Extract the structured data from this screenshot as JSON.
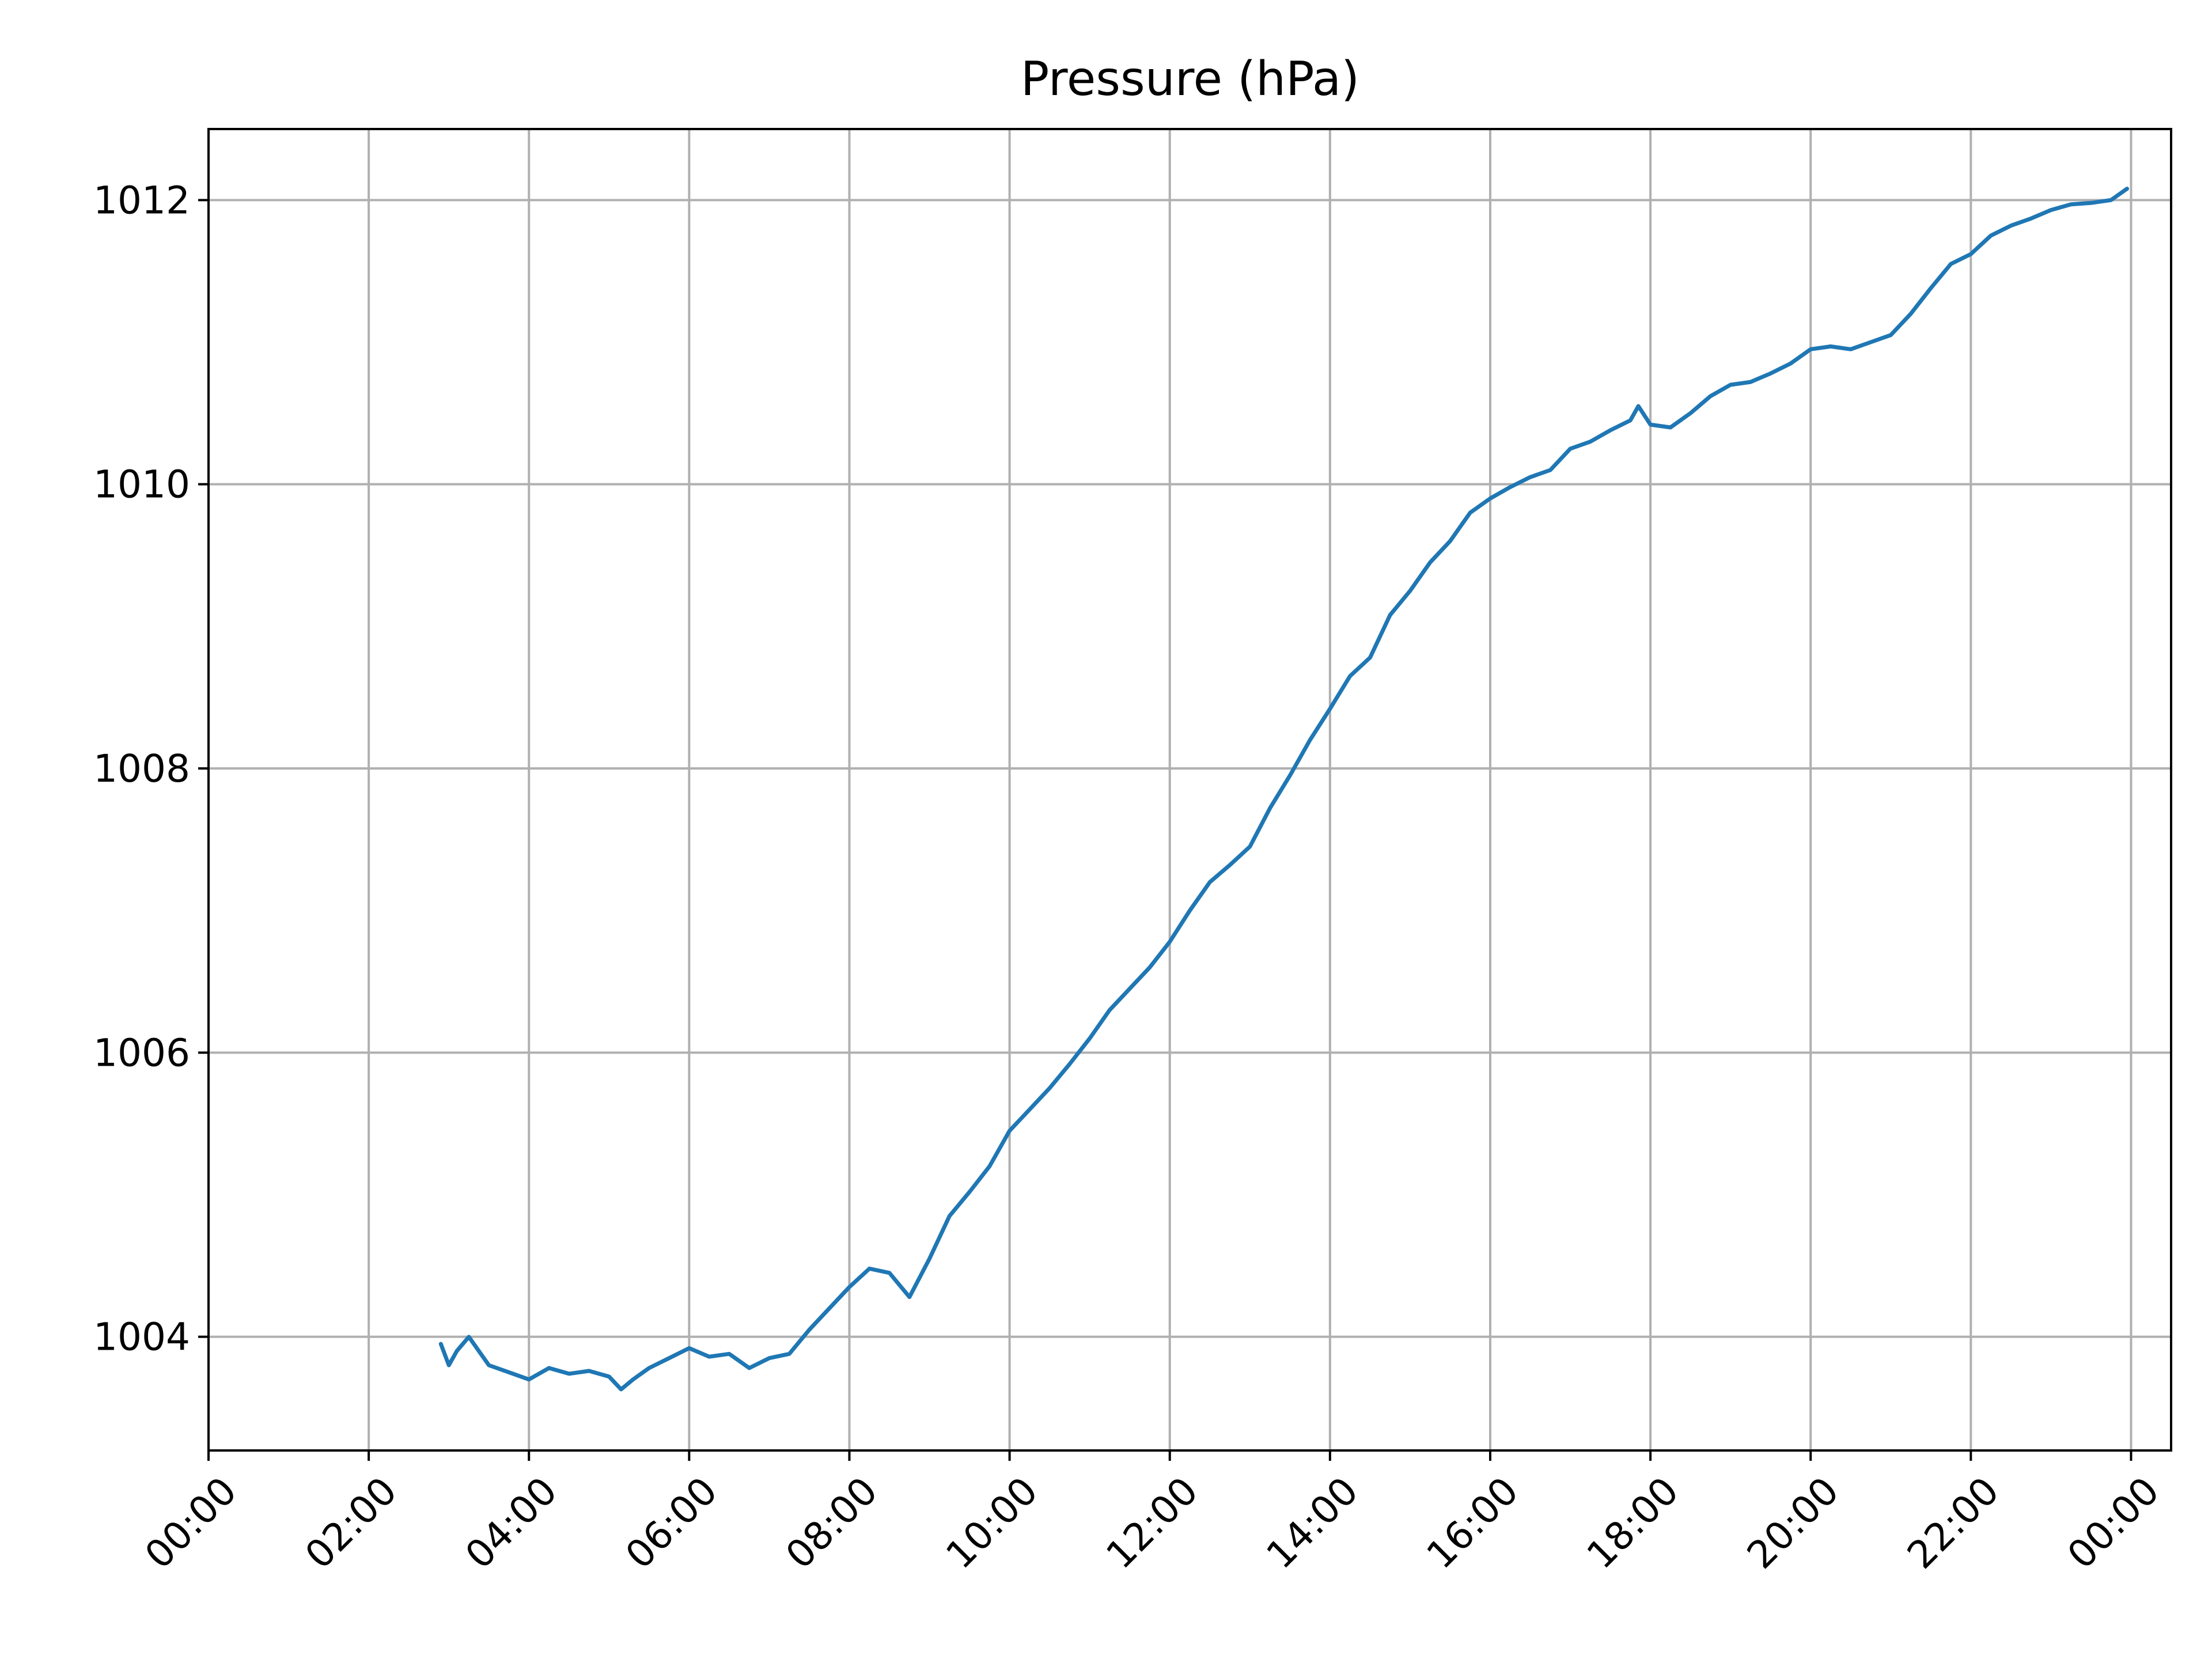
{
  "chart_data": {
    "type": "line",
    "title": "Pressure (hPa)",
    "xlabel": "",
    "ylabel": "",
    "x_unit": "hours",
    "xlim": [
      0,
      24.5
    ],
    "ylim": [
      1003.2,
      1012.5
    ],
    "xticks": [
      0,
      2,
      4,
      6,
      8,
      10,
      12,
      14,
      16,
      18,
      20,
      22,
      24
    ],
    "xtick_labels": [
      "00:00",
      "02:00",
      "04:00",
      "06:00",
      "08:00",
      "10:00",
      "12:00",
      "14:00",
      "16:00",
      "18:00",
      "20:00",
      "22:00",
      "00:00"
    ],
    "yticks": [
      1004,
      1006,
      1008,
      1010,
      1012
    ],
    "ytick_labels": [
      "1004",
      "1006",
      "1008",
      "1010",
      "1012"
    ],
    "grid": true,
    "line_color": "#1f77b4",
    "series": [
      {
        "name": "",
        "x": [
          2.9,
          3.0,
          3.1,
          3.25,
          3.5,
          3.75,
          4.0,
          4.25,
          4.5,
          4.75,
          5.0,
          5.15,
          5.3,
          5.5,
          5.75,
          6.0,
          6.25,
          6.5,
          6.75,
          7.0,
          7.25,
          7.5,
          7.75,
          8.0,
          8.25,
          8.5,
          8.75,
          9.0,
          9.25,
          9.5,
          9.75,
          10.0,
          10.25,
          10.5,
          10.75,
          11.0,
          11.25,
          11.5,
          11.75,
          12.0,
          12.25,
          12.5,
          12.75,
          13.0,
          13.25,
          13.5,
          13.75,
          14.0,
          14.25,
          14.5,
          14.75,
          15.0,
          15.25,
          15.5,
          15.75,
          16.0,
          16.25,
          16.5,
          16.75,
          17.0,
          17.25,
          17.5,
          17.75,
          17.85,
          18.0,
          18.25,
          18.5,
          18.75,
          19.0,
          19.25,
          19.5,
          19.75,
          20.0,
          20.25,
          20.5,
          20.75,
          21.0,
          21.25,
          21.5,
          21.75,
          22.0,
          22.25,
          22.5,
          22.75,
          23.0,
          23.25,
          23.5,
          23.75,
          23.95
        ],
        "y": [
          1003.95,
          1003.8,
          1003.9,
          1004.0,
          1003.8,
          1003.75,
          1003.7,
          1003.78,
          1003.74,
          1003.76,
          1003.72,
          1003.63,
          1003.7,
          1003.78,
          1003.85,
          1003.92,
          1003.86,
          1003.88,
          1003.78,
          1003.85,
          1003.88,
          1004.05,
          1004.2,
          1004.35,
          1004.48,
          1004.45,
          1004.28,
          1004.55,
          1004.85,
          1005.02,
          1005.2,
          1005.45,
          1005.6,
          1005.75,
          1005.92,
          1006.1,
          1006.3,
          1006.45,
          1006.6,
          1006.78,
          1007.0,
          1007.2,
          1007.32,
          1007.45,
          1007.72,
          1007.95,
          1008.2,
          1008.42,
          1008.65,
          1008.78,
          1009.08,
          1009.25,
          1009.45,
          1009.6,
          1009.8,
          1009.9,
          1009.98,
          1010.05,
          1010.1,
          1010.25,
          1010.3,
          1010.38,
          1010.45,
          1010.55,
          1010.42,
          1010.4,
          1010.5,
          1010.62,
          1010.7,
          1010.72,
          1010.78,
          1010.85,
          1010.95,
          1010.97,
          1010.95,
          1011.0,
          1011.05,
          1011.2,
          1011.38,
          1011.55,
          1011.62,
          1011.75,
          1011.82,
          1011.87,
          1011.93,
          1011.97,
          1011.98,
          1012.0,
          1012.08
        ]
      }
    ]
  }
}
